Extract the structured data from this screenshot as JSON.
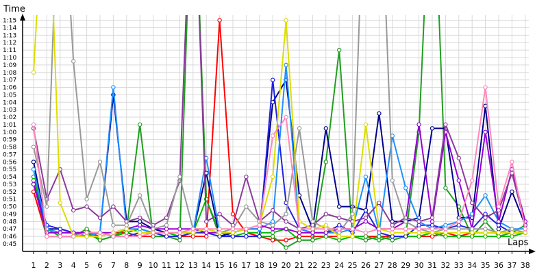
{
  "chart_data": {
    "type": "line",
    "title": "",
    "xlabel": "Laps",
    "ylabel": "Time",
    "x": [
      1,
      2,
      3,
      4,
      5,
      6,
      7,
      8,
      9,
      10,
      11,
      12,
      13,
      14,
      15,
      16,
      17,
      18,
      19,
      20,
      21,
      22,
      23,
      24,
      25,
      26,
      27,
      28,
      29,
      30,
      31,
      32,
      33,
      34,
      35,
      36,
      37,
      38
    ],
    "x_tick_labels": [
      "1",
      "2",
      "3",
      "4",
      "5",
      "6",
      "7",
      "8",
      "9",
      "10",
      "11",
      "12",
      "13",
      "14",
      "15",
      "16",
      "17",
      "18",
      "19",
      "20",
      "21",
      "22",
      "23",
      "24",
      "25",
      "26",
      "27",
      "28",
      "29",
      "30",
      "31",
      "32",
      "33",
      "34",
      "35",
      "36",
      "37",
      "38"
    ],
    "y_tick_labels": [
      "0:45",
      "0:46",
      "0:47",
      "0:48",
      "0:49",
      "0:50",
      "0:51",
      "0:52",
      "0:53",
      "0:54",
      "0:55",
      "0:56",
      "0:57",
      "0:58",
      "0:59",
      "1:00",
      "1:01",
      "1:02",
      "1:03",
      "1:04",
      "1:05",
      "1:06",
      "1:07",
      "1:08",
      "1:09",
      "1:10",
      "1:11",
      "1:12",
      "1:13",
      "1:14",
      "1:15"
    ],
    "ylim": [
      44,
      76
    ],
    "grid": true,
    "y_unit": "seconds",
    "series": [
      {
        "color": "#ff0000",
        "values": [
          52,
          46,
          46,
          46,
          46.5,
          46,
          46.5,
          46.5,
          46,
          46,
          46,
          46,
          46,
          46,
          75,
          49,
          46.5,
          46,
          45.5,
          45.5,
          46,
          46,
          46,
          46,
          46,
          46,
          46,
          46,
          46,
          46,
          46,
          46.5,
          46,
          46.5,
          46.5,
          46.5,
          46.5,
          46.5
        ]
      },
      {
        "color": "#00bb00",
        "values": [
          54,
          47,
          46,
          46,
          46.5,
          45.5,
          46,
          46.5,
          47,
          46.5,
          46.5,
          46,
          46.5,
          51,
          46.5,
          46,
          46.5,
          46.5,
          46.5,
          47,
          45.5,
          45.5,
          46,
          45.5,
          46,
          46,
          45.5,
          46,
          46,
          46,
          46.5,
          46,
          46,
          46,
          46,
          46,
          46,
          46.5
        ]
      },
      {
        "color": "#1f9f1f",
        "values": [
          53.5,
          46,
          46,
          46,
          47,
          45.5,
          46,
          47,
          61,
          46,
          46,
          45.5,
          100,
          51,
          46,
          46,
          46,
          46,
          46,
          44.5,
          45.5,
          45.5,
          56,
          71,
          46,
          45.5,
          46,
          45.5,
          46,
          60,
          100,
          52.5,
          50,
          46,
          48,
          46,
          46.5,
          47.5
        ]
      },
      {
        "color": "#00008b",
        "values": [
          56,
          47,
          47,
          46.5,
          46.5,
          46.5,
          65,
          48,
          48,
          47,
          46.5,
          46.5,
          46.5,
          54.5,
          46,
          46.5,
          47,
          47,
          64,
          67,
          51.5,
          47,
          60.5,
          50,
          50,
          49.5,
          62.5,
          48,
          48,
          48.5,
          60.5,
          60.5,
          48.5,
          48.5,
          63.5,
          47,
          52,
          47.5
        ]
      },
      {
        "color": "#2222dd",
        "values": [
          53,
          47.5,
          47,
          46.5,
          46,
          46.5,
          46,
          46,
          46.5,
          46.5,
          46,
          46,
          46.5,
          46.5,
          46,
          46,
          46,
          46,
          67,
          50.5,
          47,
          46.5,
          46.5,
          47.5,
          46.5,
          49.5,
          46.5,
          46,
          46,
          47.5,
          47.5,
          47,
          47.5,
          47,
          49,
          47.5,
          46.5,
          46.5
        ]
      },
      {
        "color": "#1e90ff",
        "values": [
          55,
          47,
          46.5,
          46.5,
          46,
          46.5,
          66,
          47,
          47,
          46.5,
          46.5,
          46.5,
          46.5,
          56.5,
          46.5,
          46.5,
          47,
          47,
          48,
          69,
          47,
          46.5,
          46.5,
          46.5,
          47,
          54,
          46.5,
          59.5,
          52.5,
          48,
          47,
          47.5,
          48,
          49,
          51.5,
          48,
          47,
          47
        ]
      },
      {
        "color": "#9400d3",
        "values": [
          53,
          46.5,
          46.5,
          46.5,
          46.5,
          46.5,
          46.5,
          47,
          47.5,
          47,
          47,
          47,
          47,
          46.5,
          46.5,
          46.5,
          47,
          47.5,
          47,
          47,
          46.5,
          46.5,
          46.5,
          47,
          47,
          48,
          47,
          47,
          48,
          61,
          48,
          60,
          53.5,
          47,
          60,
          48,
          55,
          48
        ]
      },
      {
        "color": "#8b3a9b",
        "values": [
          60.5,
          51,
          55,
          49.5,
          50,
          48.5,
          50,
          48,
          48.5,
          47.5,
          48.5,
          53.5,
          100,
          48,
          49,
          47.5,
          54,
          48,
          49.5,
          48,
          47,
          47.5,
          49,
          48.5,
          48,
          48.5,
          50.5,
          47.5,
          48.5,
          48,
          48.5,
          61,
          56.5,
          50.5,
          48.5,
          49.5,
          54.5,
          47.5
        ]
      },
      {
        "color": "#999999",
        "values": [
          58,
          50,
          100,
          69.5,
          51,
          56,
          47.5,
          47.5,
          51.5,
          47,
          47.5,
          54,
          47,
          47,
          46.5,
          47,
          50,
          48,
          47.5,
          49,
          60.5,
          48,
          47,
          46.5,
          49,
          100,
          100,
          53.5,
          48,
          47,
          46.5,
          47,
          47,
          47,
          47,
          46.5,
          47,
          46.5
        ]
      },
      {
        "color": "#dddd00",
        "values": [
          68,
          100,
          50.5,
          46,
          46,
          46,
          46.5,
          47,
          46.5,
          46.5,
          46.5,
          46.5,
          46.5,
          47,
          46.5,
          46.5,
          47,
          47.5,
          54,
          75,
          48,
          47,
          47.5,
          46,
          46,
          61,
          47,
          46.5,
          46.5,
          46.5,
          46.5,
          46.5,
          46.5,
          46.5,
          46.5,
          46.5,
          46.5,
          46.5
        ]
      },
      {
        "color": "#ff88bb",
        "values": [
          61,
          46,
          46,
          46,
          46.5,
          46.5,
          46,
          46,
          46,
          46.5,
          46.5,
          46.5,
          47,
          47,
          47,
          47,
          47,
          47.5,
          59.5,
          62,
          47,
          47,
          47,
          47,
          47,
          46.5,
          47,
          47,
          47,
          47,
          47,
          47,
          48,
          53.5,
          66,
          50,
          56,
          47
        ]
      }
    ]
  }
}
